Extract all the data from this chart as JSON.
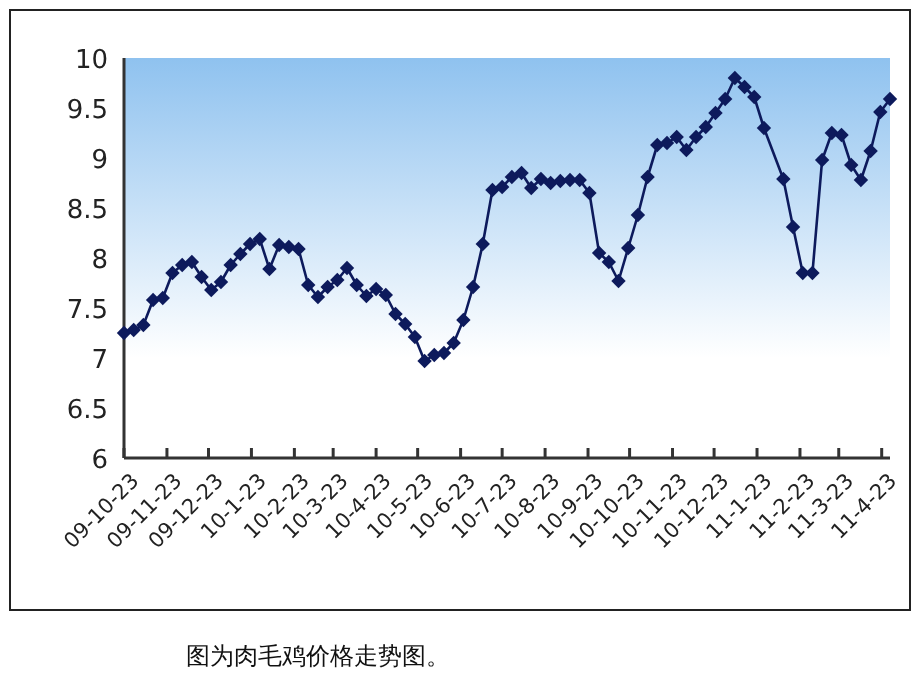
{
  "chart_data": {
    "type": "line",
    "marker": "diamond",
    "grid": false,
    "annotations": [
      "图为肉毛鸡价格走势图。"
    ],
    "ylim": [
      6,
      10
    ],
    "yticks": [
      6,
      6.5,
      7,
      7.5,
      8,
      8.5,
      9,
      9.5,
      10
    ],
    "xlim": [
      "2009-10-23",
      "2011-04-29"
    ],
    "xticks": [
      {
        "value": "2009-10-23",
        "label": "09-10-23"
      },
      {
        "value": "2009-11-23",
        "label": "09-11-23"
      },
      {
        "value": "2009-12-23",
        "label": "09-12-23"
      },
      {
        "value": "2010-01-23",
        "label": "10-1-23"
      },
      {
        "value": "2010-02-23",
        "label": "10-2-23"
      },
      {
        "value": "2010-03-23",
        "label": "10-3-23"
      },
      {
        "value": "2010-04-23",
        "label": "10-4-23"
      },
      {
        "value": "2010-05-23",
        "label": "10-5-23"
      },
      {
        "value": "2010-06-23",
        "label": "10-6-23"
      },
      {
        "value": "2010-07-23",
        "label": "10-7-23"
      },
      {
        "value": "2010-08-23",
        "label": "10-8-23"
      },
      {
        "value": "2010-09-23",
        "label": "10-9-23"
      },
      {
        "value": "2010-10-23",
        "label": "10-10-23"
      },
      {
        "value": "2010-11-23",
        "label": "10-11-23"
      },
      {
        "value": "2010-12-23",
        "label": "10-12-23"
      },
      {
        "value": "2011-01-23",
        "label": "11-1-23"
      },
      {
        "value": "2011-02-23",
        "label": "11-2-23"
      },
      {
        "value": "2011-03-23",
        "label": "11-3-23"
      },
      {
        "value": "2011-04-23",
        "label": "11-4-23"
      }
    ],
    "series": [
      {
        "color": "#0d1a5c",
        "x": [
          "2009-10-23",
          "2009-10-30",
          "2009-11-06",
          "2009-11-13",
          "2009-11-20",
          "2009-11-27",
          "2009-12-04",
          "2009-12-11",
          "2009-12-18",
          "2009-12-25",
          "2010-01-01",
          "2010-01-08",
          "2010-01-15",
          "2010-01-22",
          "2010-01-29",
          "2010-02-05",
          "2010-02-12",
          "2010-02-19",
          "2010-02-26",
          "2010-03-05",
          "2010-03-12",
          "2010-03-19",
          "2010-03-26",
          "2010-04-02",
          "2010-04-09",
          "2010-04-16",
          "2010-04-23",
          "2010-04-30",
          "2010-05-07",
          "2010-05-14",
          "2010-05-21",
          "2010-05-28",
          "2010-06-04",
          "2010-06-11",
          "2010-06-18",
          "2010-06-25",
          "2010-07-02",
          "2010-07-09",
          "2010-07-16",
          "2010-07-23",
          "2010-07-30",
          "2010-08-06",
          "2010-08-13",
          "2010-08-20",
          "2010-08-27",
          "2010-09-03",
          "2010-09-10",
          "2010-09-17",
          "2010-09-24",
          "2010-10-01",
          "2010-10-08",
          "2010-10-15",
          "2010-10-22",
          "2010-10-29",
          "2010-11-05",
          "2010-11-12",
          "2010-11-19",
          "2010-11-26",
          "2010-12-03",
          "2010-12-10",
          "2010-12-17",
          "2010-12-24",
          "2010-12-31",
          "2011-01-07",
          "2011-01-14",
          "2011-01-21",
          "2011-01-28",
          "2011-02-11",
          "2011-02-18",
          "2011-02-25",
          "2011-03-04",
          "2011-03-11",
          "2011-03-18",
          "2011-03-25",
          "2011-04-01",
          "2011-04-08",
          "2011-04-15",
          "2011-04-22",
          "2011-04-29"
        ],
        "values": [
          7.25,
          7.28,
          7.33,
          7.58,
          7.6,
          7.85,
          7.93,
          7.96,
          7.81,
          7.68,
          7.76,
          7.93,
          8.04,
          8.14,
          8.19,
          7.89,
          8.13,
          8.11,
          8.09,
          7.73,
          7.61,
          7.71,
          7.78,
          7.9,
          7.73,
          7.62,
          7.69,
          7.63,
          7.44,
          7.34,
          7.21,
          6.97,
          7.03,
          7.05,
          7.15,
          7.38,
          7.71,
          8.14,
          8.68,
          8.71,
          8.81,
          8.85,
          8.7,
          8.79,
          8.75,
          8.77,
          8.78,
          8.78,
          8.65,
          8.05,
          7.96,
          7.77,
          8.1,
          8.43,
          8.81,
          9.13,
          9.15,
          9.21,
          9.08,
          9.21,
          9.31,
          9.45,
          9.59,
          9.8,
          9.71,
          9.61,
          9.3,
          8.79,
          8.31,
          7.85,
          7.85,
          8.98,
          9.25,
          9.23,
          8.93,
          8.78,
          9.07,
          9.46,
          9.59
        ]
      }
    ]
  }
}
